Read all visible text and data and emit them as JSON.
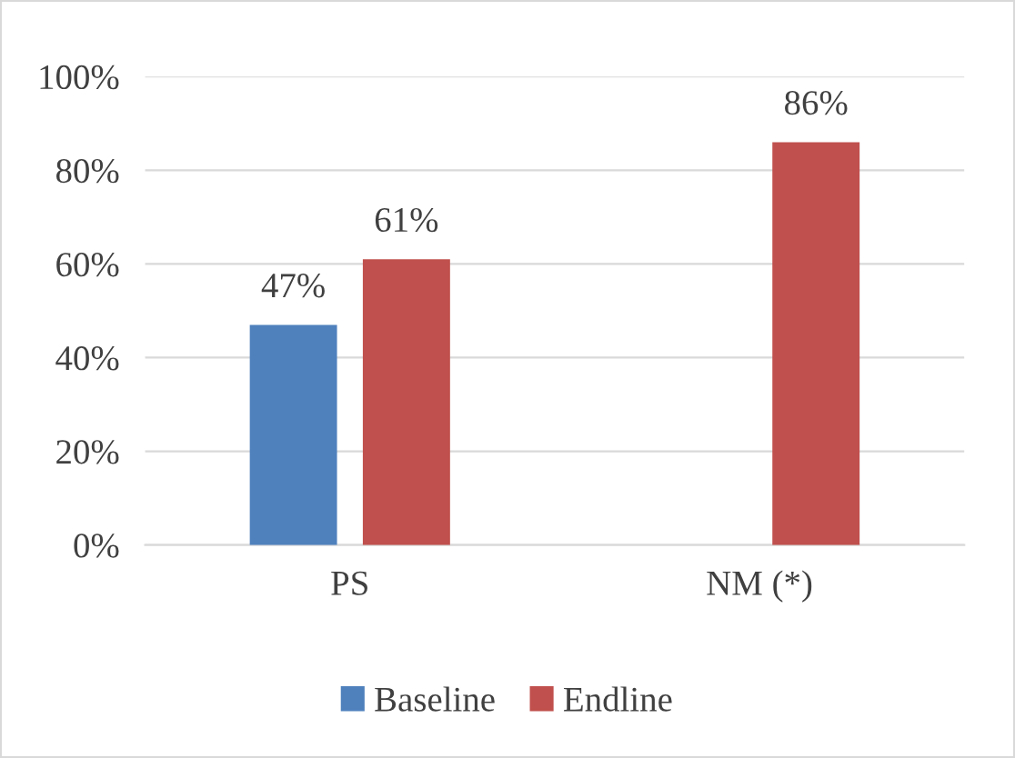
{
  "chart_data": {
    "type": "bar",
    "categories": [
      "PS",
      "NM (*)"
    ],
    "series": [
      {
        "name": "Baseline",
        "color": "#4f81bd",
        "values": [
          47,
          null
        ],
        "value_labels": [
          "47%",
          null
        ]
      },
      {
        "name": "Endline",
        "color": "#c0504d",
        "values": [
          61,
          86
        ],
        "value_labels": [
          "61%",
          "86%"
        ]
      }
    ],
    "ylim": [
      0,
      100
    ],
    "yticks": [
      {
        "value": 0,
        "label": "0%"
      },
      {
        "value": 20,
        "label": "20%"
      },
      {
        "value": 40,
        "label": "40%"
      },
      {
        "value": 60,
        "label": "60%"
      },
      {
        "value": 80,
        "label": "80%"
      },
      {
        "value": 100,
        "label": "100%"
      }
    ],
    "grid": "y",
    "legend": "bottom"
  }
}
